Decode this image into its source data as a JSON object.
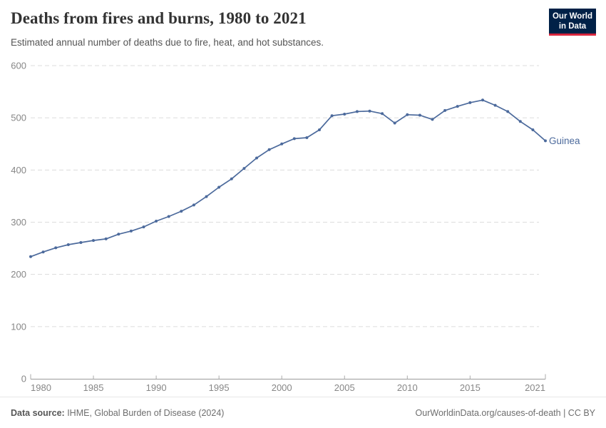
{
  "header": {
    "title": "Deaths from fires and burns, 1980 to 2021",
    "subtitle": "Estimated annual number of deaths due to fire, heat, and hot substances."
  },
  "logo": {
    "line1": "Our World",
    "line2": "in Data"
  },
  "chart_data": {
    "type": "line",
    "title": "Deaths from fires and burns, 1980 to 2021",
    "x": [
      1980,
      1981,
      1982,
      1983,
      1984,
      1985,
      1986,
      1987,
      1988,
      1989,
      1990,
      1991,
      1992,
      1993,
      1994,
      1995,
      1996,
      1997,
      1998,
      1999,
      2000,
      2001,
      2002,
      2003,
      2004,
      2005,
      2006,
      2007,
      2008,
      2009,
      2010,
      2011,
      2012,
      2013,
      2014,
      2015,
      2016,
      2017,
      2018,
      2019,
      2020,
      2021
    ],
    "series": [
      {
        "name": "Guinea",
        "color": "#4C6A9C",
        "values": [
          234,
          243,
          251,
          257,
          261,
          265,
          268,
          277,
          283,
          291,
          302,
          311,
          321,
          333,
          349,
          367,
          383,
          403,
          423,
          439,
          450,
          460,
          462,
          477,
          504,
          507,
          512,
          513,
          508,
          490,
          506,
          505,
          497,
          514,
          522,
          529,
          534,
          524,
          512,
          493,
          477,
          456
        ]
      }
    ],
    "xlabel": "",
    "ylabel": "",
    "xlim": [
      1980,
      2021
    ],
    "ylim": [
      0,
      600
    ],
    "x_ticks": [
      1980,
      1985,
      1990,
      1995,
      2000,
      2005,
      2010,
      2015,
      2021
    ],
    "y_ticks": [
      0,
      100,
      200,
      300,
      400,
      500,
      600
    ],
    "grid": "dashed-horizontal",
    "legend": "inline-end-label"
  },
  "footer": {
    "source_label": "Data source:",
    "source_value": " IHME, Global Burden of Disease (2024)",
    "credit_link": "OurWorldinData.org/causes-of-death",
    "credit_license": " | CC BY"
  },
  "colors": {
    "line": "#4C6A9C",
    "grid": "#dcdcdc",
    "axis": "#9a9a9a",
    "tick": "#ababab",
    "tick_label": "#878787",
    "title": "#333333",
    "subtitle": "#555555",
    "footer_text": "#6e6e6e",
    "logo_bg": "#002147",
    "logo_accent": "#d7263d"
  }
}
